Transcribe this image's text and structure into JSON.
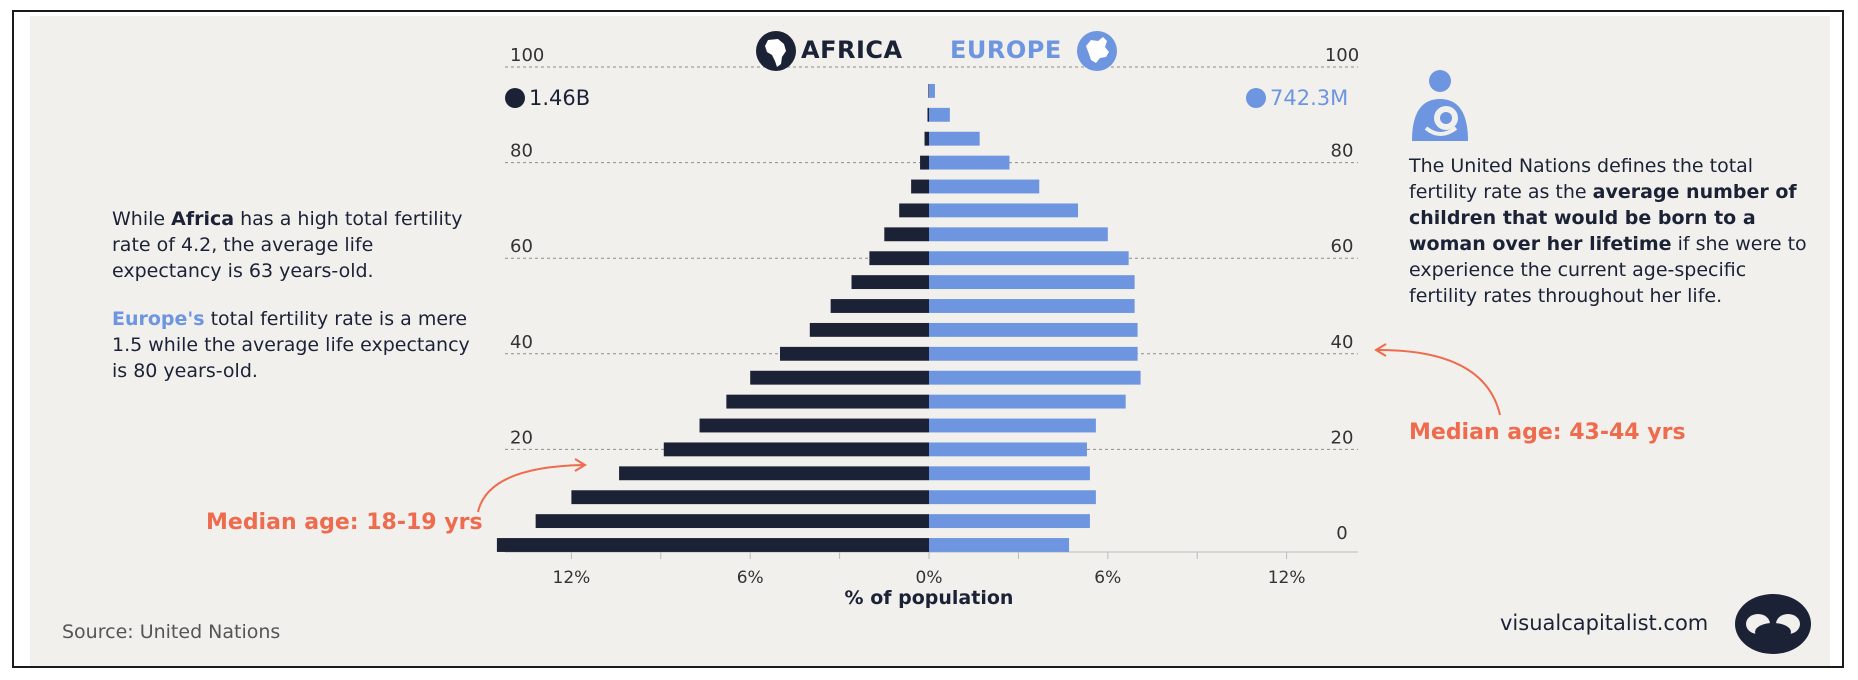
{
  "header": {
    "left_label": "AFRICA",
    "right_label": "EUROPE",
    "left_color": "#1c2236",
    "right_color": "#6d95e0"
  },
  "population": {
    "africa": "1.46B",
    "europe": "742.3M"
  },
  "left_text": {
    "p1_pre": "While ",
    "p1_bold": "Africa",
    "p1_post": " has a high total fertility rate of 4.2, the average life expectancy is 63 years-old.",
    "p2_bold": "Europe's",
    "p2_post": " total fertility rate is a mere 1.5 while the average life expectancy is 80 years-old."
  },
  "right_text": {
    "pre": "The United Nations defines the total fertility rate as the ",
    "bold": "average number of children that would be born to a woman over her lifetime",
    "post": " if she were to experience the current age-specific fertility rates throughout her life."
  },
  "annotations": {
    "africa_median": "Median age: 18-19 yrs",
    "europe_median": "Median age: 43-44 yrs",
    "color": "#ee6b4d"
  },
  "footer": {
    "source": "Source: United Nations",
    "brand": "visualcapitalist.com"
  },
  "chart_data": {
    "type": "bar",
    "orientation": "horizontal population pyramid",
    "xlabel": "% of population",
    "x_ticks": [
      "12%",
      "6%",
      "0%",
      "6%",
      "12%"
    ],
    "y_ticks": [
      "0",
      "20",
      "40",
      "60",
      "80",
      "100"
    ],
    "grid": "dashed lines at ages 20, 40, 60, 80, 100",
    "categories": [
      "0-4",
      "5-9",
      "10-14",
      "15-19",
      "20-24",
      "25-29",
      "30-34",
      "35-39",
      "40-44",
      "45-49",
      "50-54",
      "55-59",
      "60-64",
      "65-69",
      "70-74",
      "75-79",
      "80-84",
      "85-89",
      "90-94",
      "95-99",
      "100+"
    ],
    "series": [
      {
        "name": "AFRICA",
        "color": "#1c2236",
        "values": [
          14.5,
          13.2,
          12.0,
          10.4,
          8.9,
          7.7,
          6.8,
          6.0,
          5.0,
          4.0,
          3.3,
          2.6,
          2.0,
          1.5,
          1.0,
          0.6,
          0.3,
          0.15,
          0.05,
          0.02,
          0.0
        ]
      },
      {
        "name": "EUROPE",
        "color": "#6d95e0",
        "values": [
          4.7,
          5.4,
          5.6,
          5.4,
          5.3,
          5.6,
          6.6,
          7.1,
          7.0,
          7.0,
          6.9,
          6.9,
          6.7,
          6.0,
          5.0,
          3.7,
          2.7,
          1.7,
          0.7,
          0.2,
          0.0
        ]
      }
    ]
  }
}
